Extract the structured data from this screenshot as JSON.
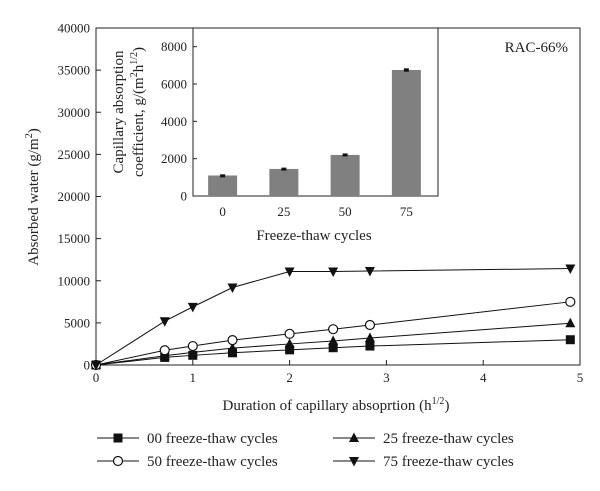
{
  "chart_data": [
    {
      "type": "line",
      "annotation": "RAC-66%",
      "xlabel": "Duration of capillary absoprtion (h",
      "xlabel_sup": "1/2",
      "xlabel_end": ")",
      "ylabel": "Absorbed water (g/m",
      "ylabel_sup": "2",
      "ylabel_end": ")",
      "xlim": [
        0,
        5
      ],
      "ylim": [
        0,
        40000
      ],
      "xticks": [
        "0",
        "1",
        "2",
        "3",
        "4",
        "5"
      ],
      "yticks": [
        "0",
        "5000",
        "10000",
        "15000",
        "20000",
        "25000",
        "30000",
        "35000",
        "40000"
      ],
      "x": [
        0,
        0.71,
        1.0,
        1.41,
        2.0,
        2.45,
        2.83,
        4.9
      ],
      "series": [
        {
          "name": "00 freeze-thaw cycles",
          "marker": "square",
          "values": [
            0,
            900,
            1150,
            1450,
            1800,
            2050,
            2250,
            3000
          ]
        },
        {
          "name": "25 freeze-thaw cycles",
          "marker": "triangle-up",
          "values": [
            0,
            1100,
            1500,
            2000,
            2500,
            2850,
            3200,
            4950
          ]
        },
        {
          "name": "50 freeze-thaw cycles",
          "marker": "circle-open",
          "values": [
            0,
            1750,
            2250,
            2950,
            3700,
            4250,
            4750,
            7500
          ]
        },
        {
          "name": "75 freeze-thaw cycles",
          "marker": "triangle-down",
          "values": [
            0,
            5200,
            6900,
            9200,
            11100,
            11100,
            11150,
            11450
          ]
        }
      ]
    },
    {
      "type": "bar",
      "categories": [
        "0",
        "25",
        "50",
        "75"
      ],
      "values": [
        1100,
        1450,
        2200,
        6750
      ],
      "errors": [
        60,
        70,
        80,
        90
      ],
      "ylim": [
        0,
        9000
      ],
      "yticks": [
        "0",
        "2000",
        "4000",
        "6000",
        "8000"
      ],
      "xlabel": "Freeze-thaw cycles",
      "ylabel_line1": "Capillary absorption",
      "ylabel_line2_pre": "coefficient, g/(m",
      "ylabel_line2_sup1": "2",
      "ylabel_line2_mid": "h",
      "ylabel_line2_sup2": "1/2",
      "ylabel_line2_end": ")",
      "colors": {
        "bar": "#808080"
      }
    }
  ]
}
